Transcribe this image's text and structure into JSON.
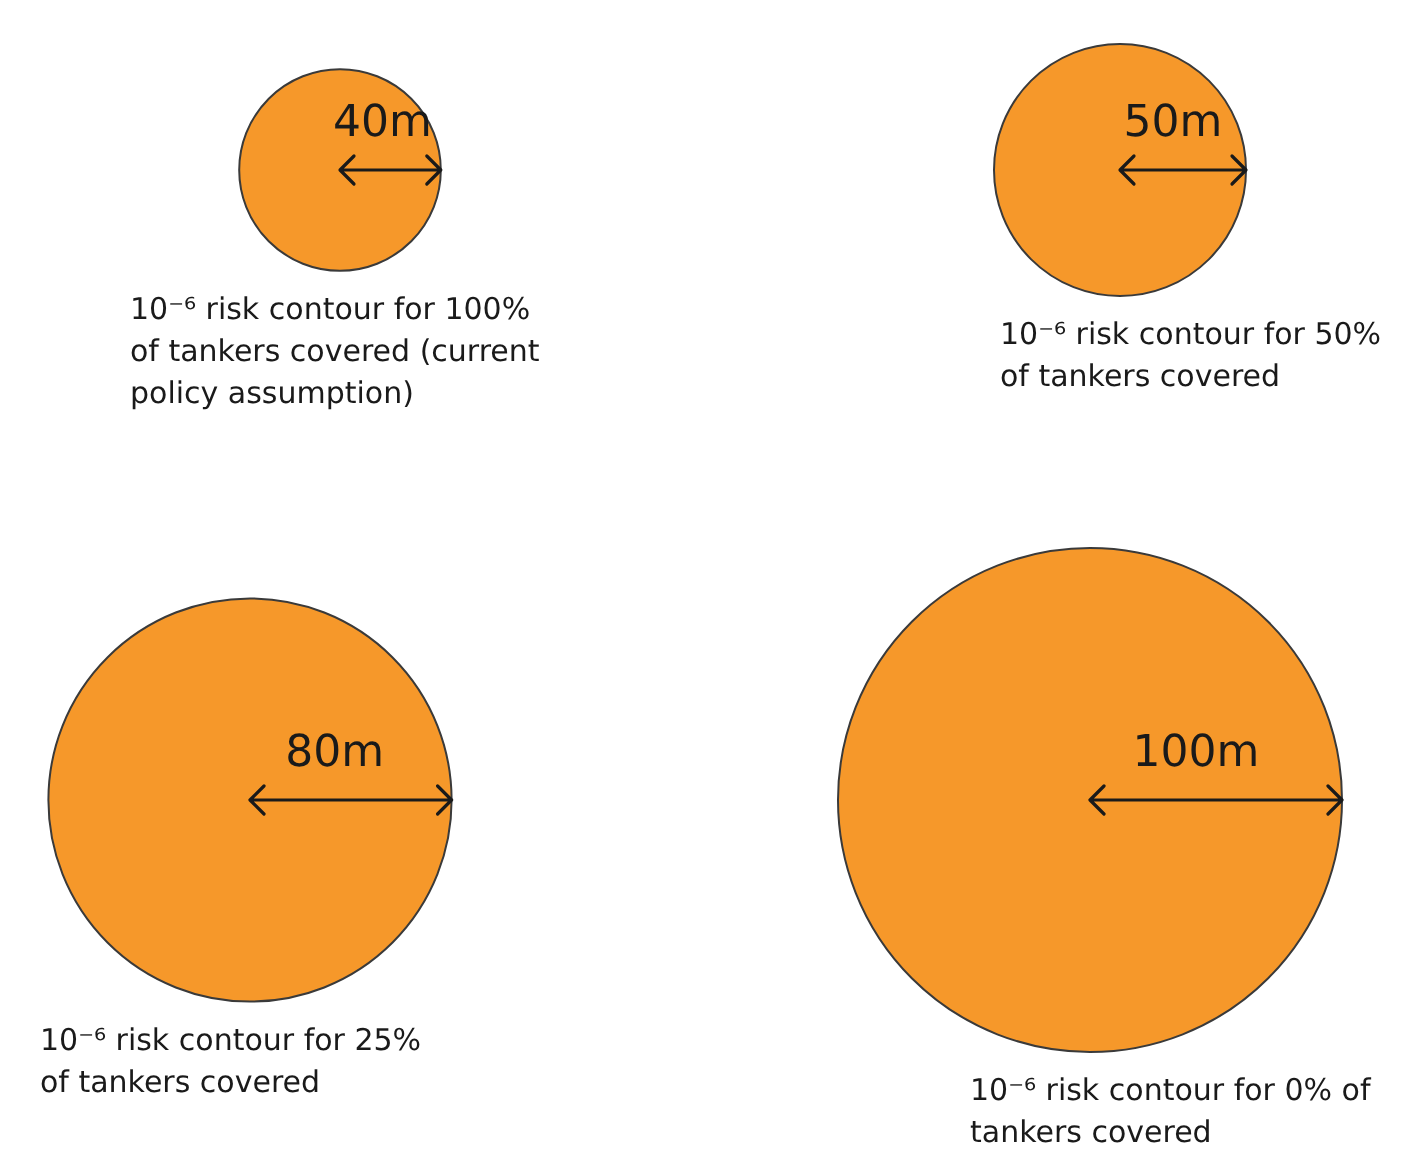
{
  "chart_data": {
    "type": "other",
    "categories": [
      "10⁻⁶ risk contour for 100% of tankers covered (current policy assumption)",
      "10⁻⁶ risk contour for 50% of tankers covered",
      "10⁻⁶ risk contour for 25% of tankers covered",
      "10⁻⁶ risk contour for 0% of tankers covered"
    ],
    "values": [
      40,
      50,
      80,
      100
    ],
    "value_labels": [
      "40m",
      "50m",
      "80m",
      "100m"
    ],
    "color": "#f6982a"
  }
}
